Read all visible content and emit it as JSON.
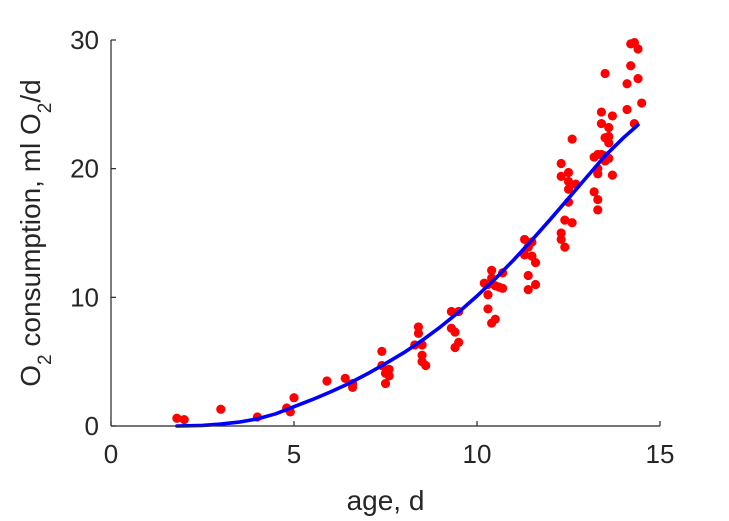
{
  "chart_data": {
    "type": "scatter",
    "xlabel": "age, d",
    "ylabel_parts": {
      "pre": "O",
      "sub1": "2",
      "mid": " consumption, ml O",
      "sub2": "2",
      "post": "/d"
    },
    "xlim": [
      0,
      15
    ],
    "ylim": [
      0,
      30
    ],
    "xticks": [
      "0",
      "5",
      "10",
      "15"
    ],
    "yticks": [
      "0",
      "10",
      "20",
      "30"
    ],
    "grid": false,
    "legend": "none",
    "colors": {
      "points": "#ff0000",
      "fit": "#0000ff",
      "axes": "#262626"
    },
    "series": [
      {
        "kind": "points",
        "points": [
          [
            1.8,
            0.6
          ],
          [
            2.0,
            0.5
          ],
          [
            3.0,
            1.3
          ],
          [
            4.0,
            0.7
          ],
          [
            4.8,
            1.4
          ],
          [
            4.9,
            1.1
          ],
          [
            5.0,
            2.2
          ],
          [
            5.9,
            3.5
          ],
          [
            6.4,
            3.7
          ],
          [
            6.6,
            3.3
          ],
          [
            6.6,
            3.0
          ],
          [
            7.4,
            5.8
          ],
          [
            7.4,
            4.7
          ],
          [
            7.5,
            4.1
          ],
          [
            7.5,
            3.3
          ],
          [
            7.6,
            4.4
          ],
          [
            7.6,
            3.9
          ],
          [
            8.3,
            6.3
          ],
          [
            8.4,
            7.7
          ],
          [
            8.4,
            7.2
          ],
          [
            8.5,
            6.3
          ],
          [
            8.5,
            5.5
          ],
          [
            8.5,
            5.0
          ],
          [
            8.6,
            4.7
          ],
          [
            9.3,
            7.6
          ],
          [
            9.3,
            8.9
          ],
          [
            9.4,
            6.1
          ],
          [
            9.4,
            7.3
          ],
          [
            9.5,
            8.9
          ],
          [
            9.5,
            6.5
          ],
          [
            10.2,
            11.1
          ],
          [
            10.3,
            11.0
          ],
          [
            10.3,
            10.2
          ],
          [
            10.3,
            9.1
          ],
          [
            10.4,
            12.1
          ],
          [
            10.4,
            11.5
          ],
          [
            10.4,
            8.0
          ],
          [
            10.5,
            10.9
          ],
          [
            10.5,
            8.3
          ],
          [
            10.6,
            10.8
          ],
          [
            10.7,
            11.9
          ],
          [
            10.7,
            10.7
          ],
          [
            11.3,
            14.5
          ],
          [
            11.3,
            13.3
          ],
          [
            11.4,
            10.6
          ],
          [
            11.4,
            11.7
          ],
          [
            11.4,
            13.9
          ],
          [
            11.5,
            13.2
          ],
          [
            11.5,
            14.3
          ],
          [
            11.6,
            11.0
          ],
          [
            11.6,
            12.7
          ],
          [
            12.3,
            20.4
          ],
          [
            12.3,
            19.4
          ],
          [
            12.3,
            15.0
          ],
          [
            12.3,
            14.5
          ],
          [
            12.4,
            13.9
          ],
          [
            12.4,
            16.0
          ],
          [
            12.5,
            18.4
          ],
          [
            12.5,
            19.0
          ],
          [
            12.5,
            17.4
          ],
          [
            12.5,
            19.7
          ],
          [
            12.6,
            22.3
          ],
          [
            12.6,
            15.8
          ],
          [
            12.7,
            18.8
          ],
          [
            13.2,
            20.9
          ],
          [
            13.2,
            18.2
          ],
          [
            13.3,
            21.1
          ],
          [
            13.3,
            20.0
          ],
          [
            13.3,
            19.6
          ],
          [
            13.3,
            17.6
          ],
          [
            13.3,
            16.8
          ],
          [
            13.4,
            21.1
          ],
          [
            13.4,
            23.5
          ],
          [
            13.4,
            24.4
          ],
          [
            13.5,
            22.4
          ],
          [
            13.5,
            21.0
          ],
          [
            13.5,
            20.6
          ],
          [
            13.5,
            27.4
          ],
          [
            13.6,
            20.8
          ],
          [
            13.6,
            22.0
          ],
          [
            13.6,
            22.5
          ],
          [
            13.6,
            23.2
          ],
          [
            13.7,
            24.1
          ],
          [
            13.7,
            19.5
          ],
          [
            14.1,
            26.6
          ],
          [
            14.1,
            24.6
          ],
          [
            14.2,
            29.7
          ],
          [
            14.2,
            28.0
          ],
          [
            14.3,
            29.8
          ],
          [
            14.3,
            23.5
          ],
          [
            14.4,
            27.0
          ],
          [
            14.4,
            29.3
          ],
          [
            14.5,
            25.1
          ]
        ]
      },
      {
        "kind": "line",
        "points": [
          [
            1.8,
            0.0
          ],
          [
            2.5,
            0.05
          ],
          [
            3.0,
            0.15
          ],
          [
            3.5,
            0.3
          ],
          [
            4.0,
            0.55
          ],
          [
            4.5,
            0.95
          ],
          [
            5.0,
            1.5
          ],
          [
            5.5,
            2.05
          ],
          [
            6.0,
            2.65
          ],
          [
            6.5,
            3.3
          ],
          [
            7.0,
            4.05
          ],
          [
            7.5,
            4.85
          ],
          [
            8.0,
            5.7
          ],
          [
            8.5,
            6.65
          ],
          [
            9.0,
            7.7
          ],
          [
            9.5,
            8.85
          ],
          [
            10.0,
            10.1
          ],
          [
            10.5,
            11.45
          ],
          [
            11.0,
            12.9
          ],
          [
            11.5,
            14.45
          ],
          [
            12.0,
            16.05
          ],
          [
            12.5,
            17.7
          ],
          [
            13.0,
            19.35
          ],
          [
            13.5,
            21.0
          ],
          [
            14.0,
            22.4
          ],
          [
            14.4,
            23.4
          ]
        ]
      }
    ]
  }
}
